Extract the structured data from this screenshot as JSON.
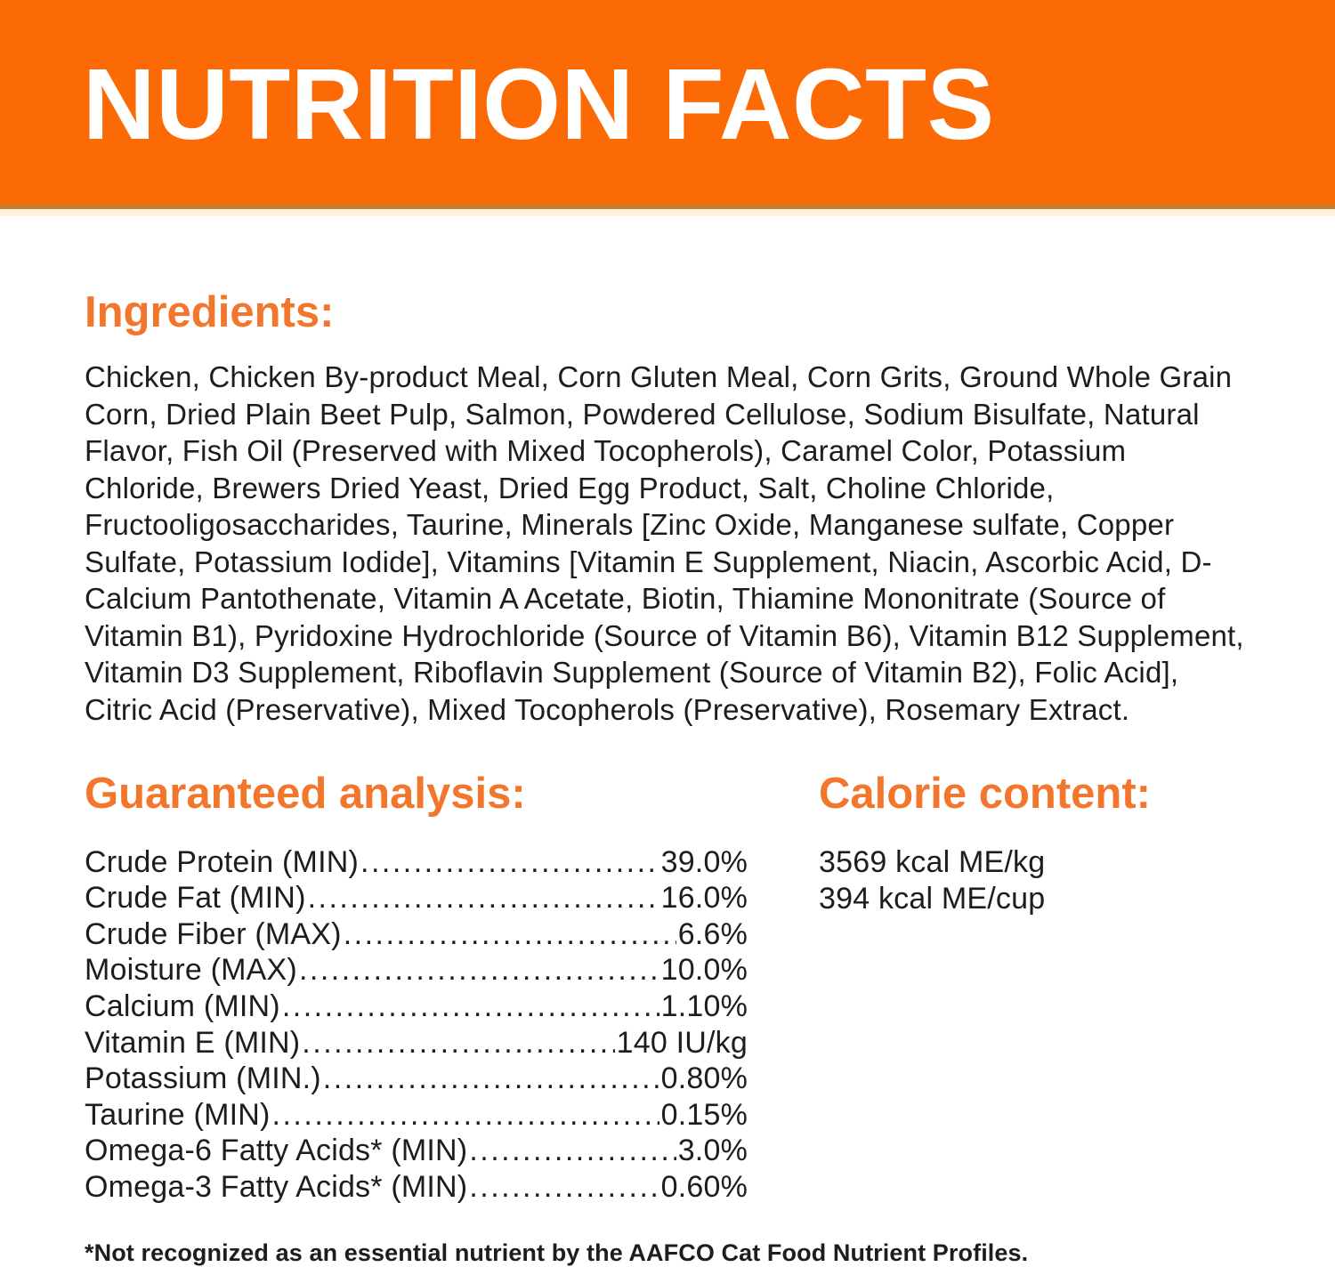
{
  "header": {
    "title": "NUTRITION FACTS"
  },
  "colors": {
    "banner_orange": "#FB6A04",
    "heading_orange": "#F2762B",
    "body_text": "#1D1D1B",
    "title_text": "#FFFFFF"
  },
  "ingredients": {
    "heading": "Ingredients:",
    "text": "Chicken, Chicken By-product Meal, Corn Gluten Meal, Corn Grits, Ground Whole Grain Corn, Dried Plain Beet Pulp, Salmon, Powdered Cellulose, Sodium Bisulfate, Natural Flavor, Fish Oil (Preserved with Mixed Tocopherols), Caramel Color, Potassium Chloride, Brewers Dried Yeast, Dried Egg Product, Salt, Choline Chloride, Fructooligosaccharides, Taurine, Minerals [Zinc Oxide, Manganese sulfate, Copper Sulfate, Potassium Iodide], Vitamins [Vitamin E Supplement, Niacin, Ascorbic Acid, D-Calcium Pantothenate, Vitamin A Acetate, Biotin, Thiamine Mononitrate (Source of Vitamin B1), Pyridoxine Hydrochloride (Source of Vitamin B6), Vitamin B12 Supplement, Vitamin D3 Supplement, Riboflavin Supplement (Source of Vitamin B2), Folic Acid], Citric Acid (Preservative), Mixed Tocopherols (Preservative), Rosemary Extract."
  },
  "guaranteed_analysis": {
    "heading": "Guaranteed analysis:",
    "leader_dots": "........................................................................................................................................",
    "rows": [
      {
        "label": "Crude Protein (MIN)",
        "value": "39.0%"
      },
      {
        "label": "Crude Fat (MIN)",
        "value": "16.0%"
      },
      {
        "label": "Crude Fiber (MAX)",
        "value": " 6.6%"
      },
      {
        "label": "Moisture (MAX)",
        "value": "10.0%"
      },
      {
        "label": "Calcium (MIN)",
        "value": "1.10%"
      },
      {
        "label": "Vitamin E (MIN)",
        "value": "140 IU/kg"
      },
      {
        "label": "Potassium (MIN.)",
        "value": "0.80%"
      },
      {
        "label": "Taurine (MIN)",
        "value": " 0.15%"
      },
      {
        "label": "Omega-6 Fatty Acids* (MIN)",
        "value": "3.0%"
      },
      {
        "label": "Omega-3 Fatty Acids* (MIN)",
        "value": "0.60%"
      }
    ]
  },
  "calorie_content": {
    "heading": "Calorie content:",
    "lines": [
      "3569 kcal ME/kg",
      "394 kcal ME/cup"
    ]
  },
  "footnote": "*Not recognized as an essential nutrient by the AAFCO Cat Food Nutrient Profiles."
}
